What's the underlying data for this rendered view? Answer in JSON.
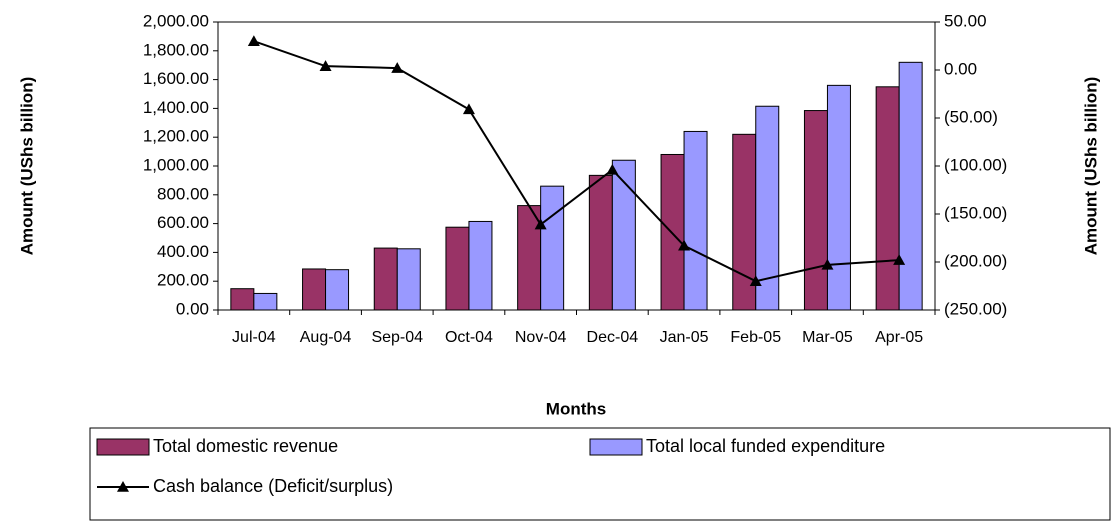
{
  "chart_data": {
    "type": "bar",
    "categories": [
      "Jul-04",
      "Aug-04",
      "Sep-04",
      "Oct-04",
      "Nov-04",
      "Dec-04",
      "Jan-05",
      "Feb-05",
      "Mar-05",
      "Apr-05"
    ],
    "x_label": "Months",
    "y_label": "Amount (UShs billion)",
    "y2_label": "Amount (UShs billion)",
    "series": [
      {
        "name": "Total domestic revenue",
        "type": "bar",
        "color": "#993366",
        "values": [
          148,
          285,
          430,
          575,
          725,
          935,
          1080,
          1220,
          1385,
          1550
        ]
      },
      {
        "name": "Total local funded expenditure",
        "type": "bar",
        "color": "#9999ff",
        "values": [
          115,
          280,
          425,
          615,
          860,
          1040,
          1240,
          1415,
          1560,
          1720
        ]
      },
      {
        "name": "Cash balance (Deficit/surplus)",
        "type": "line",
        "axis": "y2",
        "color": "#000000",
        "values": [
          30,
          4,
          2,
          -41,
          -161,
          -104,
          -183,
          -220,
          -203,
          -198
        ]
      }
    ],
    "ylim": [
      0,
      2000
    ],
    "yticks": [
      {
        "value": 0,
        "label": "0.00"
      },
      {
        "value": 200,
        "label": "200.00"
      },
      {
        "value": 400,
        "label": "400.00"
      },
      {
        "value": 600,
        "label": "600.00"
      },
      {
        "value": 800,
        "label": "800.00"
      },
      {
        "value": 1000,
        "label": "1,000.00"
      },
      {
        "value": 1200,
        "label": "1,200.00"
      },
      {
        "value": 1400,
        "label": "1,400.00"
      },
      {
        "value": 1600,
        "label": "1,600.00"
      },
      {
        "value": 1800,
        "label": "1,800.00"
      },
      {
        "value": 2000,
        "label": "2,000.00"
      }
    ],
    "y2lim": [
      -250,
      50
    ],
    "y2ticks": [
      {
        "value": -250,
        "label": "(250.00)"
      },
      {
        "value": -200,
        "label": "(200.00)"
      },
      {
        "value": -150,
        "label": "(150.00)"
      },
      {
        "value": -100,
        "label": "(100.00)"
      },
      {
        "value": -50,
        "label": "(50.00)"
      },
      {
        "value": 0,
        "label": "0.00"
      },
      {
        "value": 50,
        "label": "50.00"
      }
    ],
    "grid": false
  }
}
